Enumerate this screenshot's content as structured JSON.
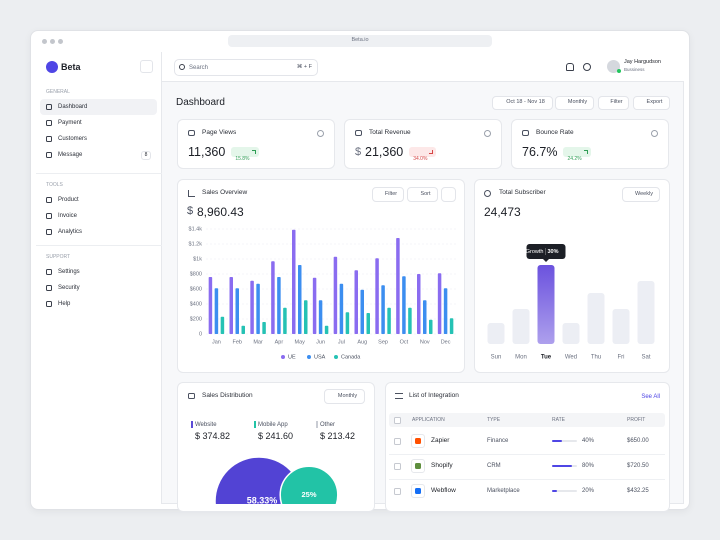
{
  "browser": {
    "url": "Beta.io"
  },
  "sidebar": {
    "brand": "Beta",
    "sections": [
      {
        "title": "GENERAL",
        "items": [
          {
            "label": "Dashboard"
          },
          {
            "label": "Payment"
          },
          {
            "label": "Customers"
          },
          {
            "label": "Message",
            "badge": "8"
          }
        ]
      },
      {
        "title": "TOOLS",
        "items": [
          {
            "label": "Product"
          },
          {
            "label": "Invoice"
          },
          {
            "label": "Analytics"
          }
        ]
      },
      {
        "title": "SUPPORT",
        "items": [
          {
            "label": "Settings"
          },
          {
            "label": "Security"
          },
          {
            "label": "Help"
          }
        ]
      }
    ]
  },
  "topbar": {
    "search_placeholder": "Search",
    "shortcut": "⌘ + F",
    "user_name": "Jay Hargudson",
    "user_role": "Bussiness"
  },
  "header": {
    "title": "Dashboard",
    "date_range": "Oct 18 - Nov 18",
    "period": "Monthly",
    "filter": "Filter",
    "export": "Export"
  },
  "stats": [
    {
      "label": "Page Views",
      "value": "11,360",
      "change": "15.8%",
      "trend": "up"
    },
    {
      "label": "Total Revenue",
      "currency": "$",
      "value": "21,360",
      "change": "34.0%",
      "trend": "down"
    },
    {
      "label": "Bounce Rate",
      "value": "76.7%",
      "change": "24.2%",
      "trend": "up"
    }
  ],
  "sales_overview": {
    "title": "Sales Overview",
    "currency": "$",
    "total": "8,960.43",
    "filter": "Filter",
    "sort": "Sort"
  },
  "subscriber": {
    "title": "Total Subscriber",
    "total": "24,473",
    "period": "Weekly"
  },
  "distribution": {
    "title": "Sales Distribution",
    "period": "Monthly",
    "items": [
      {
        "label": "Website",
        "value": "$ 374.82",
        "color": "#5b4bd6"
      },
      {
        "label": "Mobile App",
        "value": "$ 241.60",
        "color": "#22c3a6"
      },
      {
        "label": "Other",
        "value": "$ 213.42",
        "color": "#c9ccd3"
      }
    ]
  },
  "integration": {
    "title": "List of Integration",
    "see_all": "See All",
    "columns": [
      "APPLICATION",
      "TYPE",
      "RATE",
      "PROFIT"
    ],
    "rows": [
      {
        "name": "Zapier",
        "type": "Finance",
        "rate": 40,
        "rate_label": "40%",
        "profit": "$650.00"
      },
      {
        "name": "Shopify",
        "type": "CRM",
        "rate": 80,
        "rate_label": "80%",
        "profit": "$720.50"
      },
      {
        "name": "Webflow",
        "type": "Marketplace",
        "rate": 20,
        "rate_label": "20%",
        "profit": "$432.25"
      }
    ]
  },
  "chart_data": [
    {
      "type": "bar",
      "categories": [
        "Jan",
        "Feb",
        "Mar",
        "Apr",
        "May",
        "Jun",
        "Jul",
        "Aug",
        "Sep",
        "Oct",
        "Nov",
        "Dec"
      ],
      "series": [
        {
          "name": "UE",
          "color": "#8a6cf0",
          "values": [
            760,
            760,
            710,
            970,
            1390,
            750,
            1030,
            850,
            1010,
            1280,
            800,
            810
          ]
        },
        {
          "name": "USA",
          "color": "#3c8ef0",
          "values": [
            610,
            610,
            670,
            760,
            920,
            450,
            670,
            590,
            650,
            770,
            450,
            610
          ]
        },
        {
          "name": "Canada",
          "color": "#25c2b4",
          "values": [
            230,
            110,
            160,
            350,
            450,
            110,
            290,
            280,
            350,
            350,
            190,
            210
          ]
        }
      ],
      "ylim": [
        0,
        1400
      ],
      "yticks": [
        0,
        {
          "value": 200,
          "label": "$200"
        },
        {
          "value": 400,
          "label": "$400"
        },
        {
          "value": 600,
          "label": "$600"
        },
        {
          "value": 800,
          "label": "$800"
        },
        {
          "value": 1000,
          "label": "$1k"
        },
        {
          "value": 1200,
          "label": "$1.2k"
        },
        {
          "value": 1400,
          "label": "$1.4k"
        }
      ],
      "grid": true,
      "legend": "bottom"
    },
    {
      "type": "bar",
      "categories": [
        "Sun",
        "Mon",
        "Tue",
        "Wed",
        "Thu",
        "Fri",
        "Sat"
      ],
      "values": [
        21,
        35,
        79,
        21,
        51,
        35,
        63
      ],
      "ylim": [
        0,
        80
      ],
      "color": "#eceef4",
      "highlight": "Tue",
      "highlight_color": "#6b52de",
      "annotation": {
        "label": "Growth",
        "value": "30%"
      }
    },
    {
      "type": "venn",
      "values": [
        58.33,
        25
      ],
      "value_labels": [
        "58.33%",
        "25%"
      ],
      "colors": [
        "#5243d4",
        "#22c3a6"
      ]
    }
  ]
}
